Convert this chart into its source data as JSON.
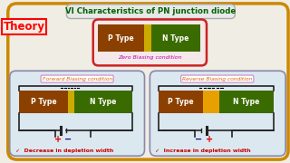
{
  "title": "VI Characteristics of PN junction diode",
  "title_color": "#006400",
  "bg_color": "#f0ede5",
  "outer_border_color": "#cc8800",
  "theory_text": "Theory",
  "theory_color": "#ff0000",
  "zero_bias_label": "Zero Biasing condition",
  "zero_bias_label_color": "#bb00bb",
  "p_type_color": "#8B4000",
  "n_type_color": "#3a6b00",
  "depletion_fwd_color": "#ccaa00",
  "depletion_rev_color": "#e8a000",
  "fwd_label": "Forward Biasing condition",
  "rev_label": "Reverse Biasing condition",
  "fwd_note": "✓  Decrease in depletion width",
  "rev_note": "✓  Increase in depletion width",
  "note_color": "#cc0000",
  "panel_bg": "#dce8f0",
  "panel_border_color": "#8888aa",
  "zero_panel_border": "#cc2222",
  "zero_panel_bg": "#f5e8e8",
  "plus_color": "#dd0000",
  "minus_color": "#000080",
  "title_box_bg": "#e8e8e8",
  "title_box_border": "#aaaaaa",
  "fwd_label_color": "#dd6600",
  "fwd_label_border": "#cc88cc",
  "rev_label_color": "#dd6600",
  "rev_label_border": "#cc88cc",
  "wire_color": "#222222"
}
